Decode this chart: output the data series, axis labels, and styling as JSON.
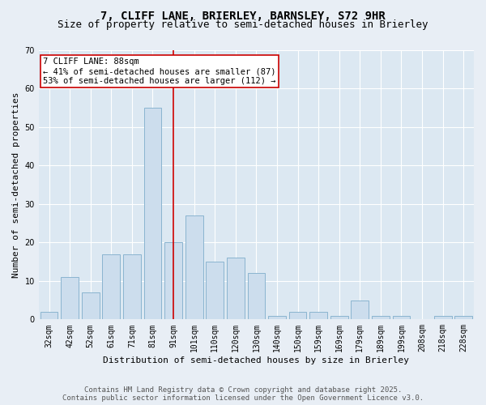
{
  "title_line1": "7, CLIFF LANE, BRIERLEY, BARNSLEY, S72 9HR",
  "title_line2": "Size of property relative to semi-detached houses in Brierley",
  "xlabel": "Distribution of semi-detached houses by size in Brierley",
  "ylabel": "Number of semi-detached properties",
  "categories": [
    "32sqm",
    "42sqm",
    "52sqm",
    "61sqm",
    "71sqm",
    "81sqm",
    "91sqm",
    "101sqm",
    "110sqm",
    "120sqm",
    "130sqm",
    "140sqm",
    "150sqm",
    "159sqm",
    "169sqm",
    "179sqm",
    "189sqm",
    "199sqm",
    "208sqm",
    "218sqm",
    "228sqm"
  ],
  "values": [
    2,
    11,
    7,
    17,
    17,
    55,
    20,
    27,
    15,
    16,
    12,
    1,
    2,
    2,
    1,
    5,
    1,
    1,
    0,
    1,
    1
  ],
  "bar_color": "#ccdded",
  "bar_edge_color": "#8ab4d0",
  "highlight_bar_index": 6,
  "highlight_line_color": "#cc0000",
  "annotation_text": "7 CLIFF LANE: 88sqm\n← 41% of semi-detached houses are smaller (87)\n53% of semi-detached houses are larger (112) →",
  "annotation_box_facecolor": "#ffffff",
  "annotation_box_edgecolor": "#cc0000",
  "ylim": [
    0,
    70
  ],
  "yticks": [
    0,
    10,
    20,
    30,
    40,
    50,
    60,
    70
  ],
  "background_color": "#e8eef5",
  "plot_bg_color": "#dce8f2",
  "grid_color": "#ffffff",
  "footer_text": "Contains HM Land Registry data © Crown copyright and database right 2025.\nContains public sector information licensed under the Open Government Licence v3.0.",
  "title_fontsize": 10,
  "subtitle_fontsize": 9,
  "axis_label_fontsize": 8,
  "tick_fontsize": 7,
  "annotation_fontsize": 7.5,
  "footer_fontsize": 6.5
}
